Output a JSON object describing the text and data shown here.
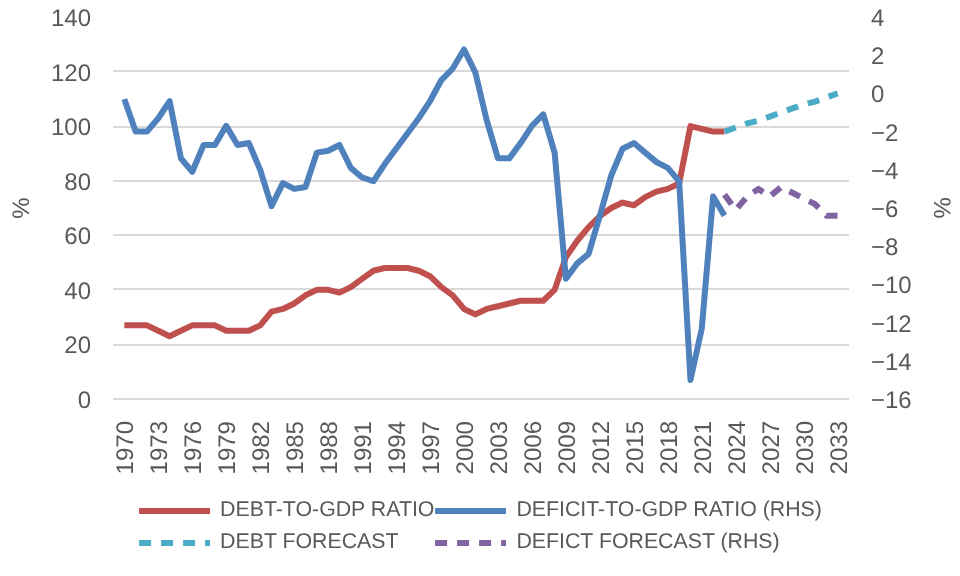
{
  "chart_data": {
    "type": "line",
    "ylabel": "%",
    "y2label": "%",
    "xlim": [
      1969,
      2034
    ],
    "xticks": [
      1970,
      1973,
      1976,
      1979,
      1982,
      1985,
      1988,
      1991,
      1994,
      1997,
      2000,
      2003,
      2006,
      2009,
      2012,
      2015,
      2018,
      2021,
      2024,
      2027,
      2030,
      2033
    ],
    "ylim": [
      0,
      140
    ],
    "yticks": [
      0,
      20,
      40,
      60,
      80,
      100,
      120,
      140
    ],
    "y2lim": [
      -16,
      4
    ],
    "y2ticks": [
      -16,
      -14,
      -12,
      -10,
      -8,
      -6,
      -4,
      -2,
      0,
      2,
      4
    ],
    "grid": "y",
    "legend": "bottom",
    "marker": "none",
    "series": [
      {
        "name": "DEBT-TO-GDP RATIO",
        "color": "#c0504d",
        "line_style": "solid",
        "x": [
          1970,
          1971,
          1972,
          1973,
          1974,
          1975,
          1976,
          1977,
          1978,
          1979,
          1980,
          1981,
          1982,
          1983,
          1984,
          1985,
          1986,
          1987,
          1988,
          1989,
          1990,
          1991,
          1992,
          1993,
          1994,
          1995,
          1996,
          1997,
          1998,
          1999,
          2000,
          2001,
          2002,
          2003,
          2004,
          2005,
          2006,
          2007,
          2008,
          2009,
          2010,
          2011,
          2012,
          2013,
          2014,
          2015,
          2016,
          2017,
          2018,
          2019,
          2020,
          2021,
          2022,
          2023
        ],
        "values": [
          27,
          27,
          27,
          25,
          23,
          25,
          27,
          27,
          27,
          25,
          25,
          25,
          27,
          32,
          33,
          35,
          38,
          40,
          40,
          39,
          41,
          44,
          47,
          48,
          48,
          48,
          47,
          45,
          41,
          38,
          33,
          31,
          33,
          34,
          35,
          36,
          36,
          36,
          40,
          52,
          58,
          63,
          67,
          70,
          72,
          71,
          74,
          76,
          77,
          79,
          100,
          99,
          98,
          98
        ]
      },
      {
        "name": "DEBT FORECAST",
        "color": "#4bacc6",
        "line_style": "dashed",
        "x": [
          2023,
          2024,
          2025,
          2026,
          2027,
          2028,
          2029,
          2030,
          2031,
          2032,
          2033
        ],
        "values": [
          98,
          99.5,
          101,
          102,
          103.5,
          105,
          106.5,
          108,
          109,
          110.5,
          112
        ]
      },
      {
        "name": "DEFICIT-TO-GDP RATIO (RHS)",
        "color": "#4f81bd",
        "line_style": "solid",
        "axis": "y2",
        "x": [
          1970,
          1971,
          1972,
          1973,
          1974,
          1975,
          1976,
          1977,
          1978,
          1979,
          1980,
          1981,
          1982,
          1983,
          1984,
          1985,
          1986,
          1987,
          1988,
          1989,
          1990,
          1991,
          1992,
          1993,
          1994,
          1995,
          1996,
          1997,
          1998,
          1999,
          2000,
          2001,
          2002,
          2003,
          2004,
          2005,
          2006,
          2007,
          2008,
          2009,
          2010,
          2011,
          2012,
          2013,
          2014,
          2015,
          2016,
          2017,
          2018,
          2019,
          2020,
          2021,
          2022,
          2023
        ],
        "values": [
          -0.3,
          -2.0,
          -2.0,
          -1.3,
          -0.4,
          -3.4,
          -4.1,
          -2.7,
          -2.7,
          -1.7,
          -2.7,
          -2.6,
          -4.0,
          -5.9,
          -4.7,
          -5.0,
          -4.9,
          -3.1,
          -3.0,
          -2.7,
          -3.9,
          -4.4,
          -4.6,
          -3.7,
          -2.9,
          -2.1,
          -1.3,
          -0.4,
          0.7,
          1.3,
          2.3,
          1.1,
          -1.4,
          -3.4,
          -3.4,
          -2.6,
          -1.7,
          -1.1,
          -3.1,
          -9.7,
          -8.9,
          -8.4,
          -6.4,
          -4.3,
          -2.9,
          -2.6,
          -3.1,
          -3.6,
          -3.9,
          -4.6,
          -15.0,
          -12.3,
          -5.4,
          -6.4
        ]
      },
      {
        "name": "DEFICT FORECAST (RHS)",
        "color": "#8064a2",
        "line_style": "dashed",
        "axis": "y2",
        "x": [
          2023,
          2024,
          2025,
          2026,
          2027,
          2028,
          2029,
          2030,
          2031,
          2032,
          2033
        ],
        "values": [
          -5.3,
          -6.1,
          -5.4,
          -5.0,
          -5.4,
          -4.9,
          -5.2,
          -5.5,
          -5.8,
          -6.4,
          -6.4
        ]
      }
    ]
  }
}
